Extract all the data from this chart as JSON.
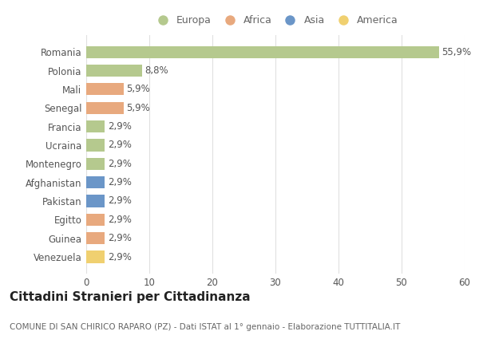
{
  "countries": [
    "Romania",
    "Polonia",
    "Mali",
    "Senegal",
    "Francia",
    "Ucraina",
    "Montenegro",
    "Afghanistan",
    "Pakistan",
    "Egitto",
    "Guinea",
    "Venezuela"
  ],
  "values": [
    55.9,
    8.8,
    5.9,
    5.9,
    2.9,
    2.9,
    2.9,
    2.9,
    2.9,
    2.9,
    2.9,
    2.9
  ],
  "labels": [
    "55,9%",
    "8,8%",
    "5,9%",
    "5,9%",
    "2,9%",
    "2,9%",
    "2,9%",
    "2,9%",
    "2,9%",
    "2,9%",
    "2,9%",
    "2,9%"
  ],
  "colors": [
    "#b5c98e",
    "#b5c98e",
    "#e8a97e",
    "#e8a97e",
    "#b5c98e",
    "#b5c98e",
    "#b5c98e",
    "#6b96c8",
    "#6b96c8",
    "#e8a97e",
    "#e8a97e",
    "#f0d070"
  ],
  "legend_labels": [
    "Europa",
    "Africa",
    "Asia",
    "America"
  ],
  "legend_colors": [
    "#b5c98e",
    "#e8a97e",
    "#6b96c8",
    "#f0d070"
  ],
  "title": "Cittadini Stranieri per Cittadinanza",
  "subtitle": "COMUNE DI SAN CHIRICO RAPARO (PZ) - Dati ISTAT al 1° gennaio - Elaborazione TUTTITALIA.IT",
  "xlim": [
    0,
    60
  ],
  "xticks": [
    0,
    10,
    20,
    30,
    40,
    50,
    60
  ],
  "bg_color": "#ffffff",
  "grid_color": "#e0e0e0",
  "bar_height": 0.65,
  "label_fontsize": 8.5,
  "tick_fontsize": 8.5,
  "title_fontsize": 11,
  "subtitle_fontsize": 7.5,
  "legend_fontsize": 9
}
